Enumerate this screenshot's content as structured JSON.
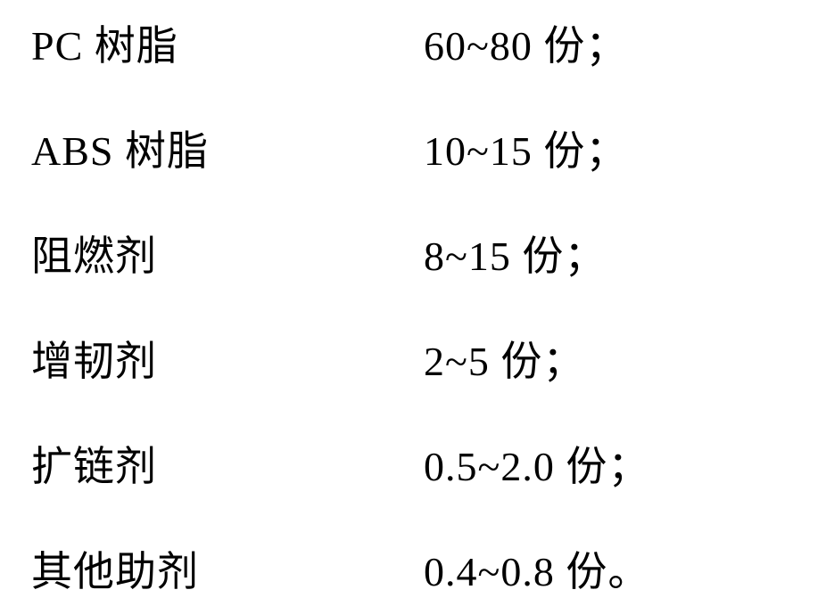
{
  "composition": {
    "rows": [
      {
        "label": "PC 树脂",
        "value": "60~80 份；"
      },
      {
        "label": "ABS 树脂",
        "value": "10~15 份；"
      },
      {
        "label": "阻燃剂",
        "value": " 8~15 份；"
      },
      {
        "label": "增韧剂",
        "value": " 2~5 份；"
      },
      {
        "label": "扩链剂",
        "value": "0.5~2.0 份；"
      },
      {
        "label": "其他助剂",
        "value": "0.4~0.8 份。"
      }
    ],
    "styling": {
      "font_size": 46,
      "text_color": "#000000",
      "background_color": "#ffffff",
      "label_width": 440,
      "row_spacing": 52,
      "font_family": "SimSun"
    }
  }
}
